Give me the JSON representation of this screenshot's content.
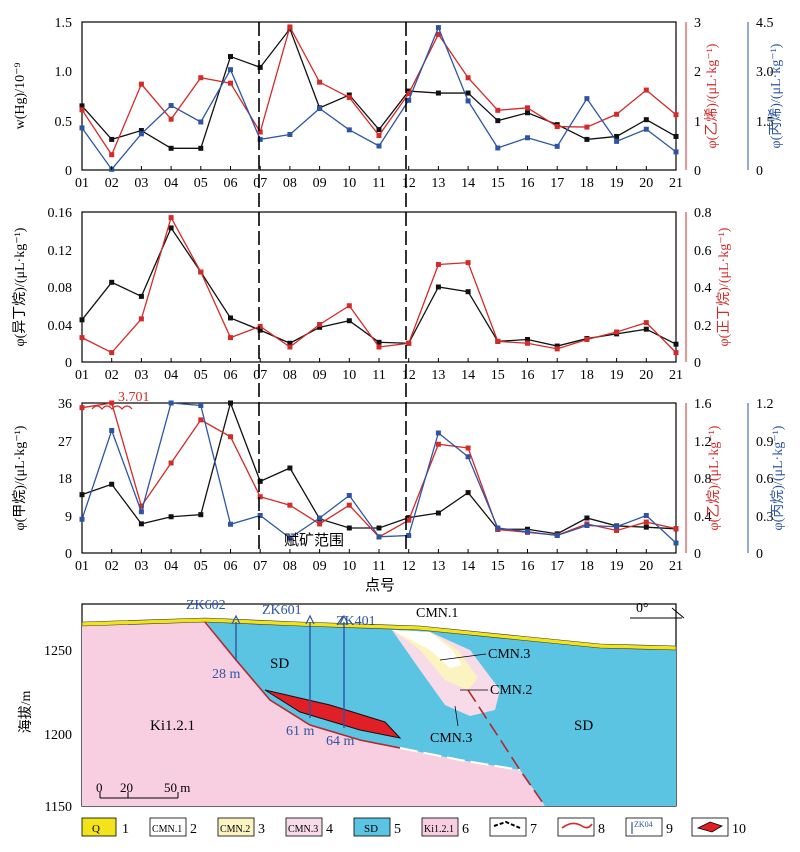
{
  "chart_data": [
    {
      "type": "line",
      "x_categories": [
        "01",
        "02",
        "03",
        "04",
        "05",
        "06",
        "07",
        "08",
        "09",
        "10",
        "11",
        "12",
        "13",
        "14",
        "15",
        "16",
        "17",
        "18",
        "19",
        "20",
        "21"
      ],
      "left_axis": {
        "label": "w(Hg)/10⁻⁹",
        "ylim": [
          0,
          1.5
        ],
        "ticks": [
          "0",
          "0.5",
          "1.0",
          "1.5"
        ]
      },
      "right_axis_1": {
        "label": "φ(乙烯)/(μL·kg⁻¹)",
        "ylim": [
          0,
          3
        ],
        "ticks": [
          "0",
          "1",
          "2",
          "3"
        ],
        "color": "#d42a2a"
      },
      "right_axis_2": {
        "label": "φ(丙烯)/(μL·kg⁻¹)",
        "ylim": [
          0,
          4.5
        ],
        "ticks": [
          "0",
          "1.5",
          "3.0",
          "4.5"
        ],
        "color": "#2e55a3"
      },
      "series": [
        {
          "axis": "left",
          "color": "#111111",
          "values": [
            0.65,
            0.31,
            0.4,
            0.22,
            0.22,
            1.15,
            1.04,
            1.43,
            0.63,
            0.76,
            0.41,
            0.8,
            0.78,
            0.78,
            0.5,
            0.58,
            0.46,
            0.31,
            0.34,
            0.51,
            0.34
          ]
        },
        {
          "axis": "right_1",
          "color": "#d42a2a",
          "values": [
            1.22,
            0.31,
            1.74,
            1.03,
            1.87,
            1.76,
            0.77,
            2.9,
            1.78,
            1.47,
            0.7,
            1.55,
            2.75,
            1.87,
            1.21,
            1.26,
            0.88,
            0.87,
            1.13,
            1.62,
            1.12
          ]
        },
        {
          "axis": "right_2",
          "color": "#2e55a3",
          "values": [
            1.28,
            0.02,
            1.1,
            1.96,
            1.46,
            3.05,
            0.93,
            1.08,
            1.87,
            1.22,
            0.73,
            2.12,
            4.33,
            2.1,
            0.67,
            0.98,
            0.72,
            2.17,
            0.87,
            1.24,
            0.55
          ]
        }
      ]
    },
    {
      "type": "line",
      "x_categories": [
        "01",
        "02",
        "03",
        "04",
        "05",
        "06",
        "07",
        "08",
        "09",
        "10",
        "11",
        "12",
        "13",
        "14",
        "15",
        "16",
        "17",
        "18",
        "19",
        "20",
        "21"
      ],
      "left_axis": {
        "label": "φ(异丁烷)/(μL·kg⁻¹)",
        "ylim": [
          0,
          0.16
        ],
        "ticks": [
          "0",
          "0.04",
          "0.08",
          "0.12",
          "0.16"
        ]
      },
      "right_axis_1": {
        "label": "φ(正丁烷)/(μL·kg⁻¹)",
        "ylim": [
          0,
          0.8
        ],
        "ticks": [
          "0",
          "0.2",
          "0.4",
          "0.6",
          "0.8"
        ],
        "color": "#d42a2a"
      },
      "series": [
        {
          "axis": "left",
          "color": "#111111",
          "values": [
            0.045,
            0.085,
            0.07,
            0.143,
            0.096,
            0.047,
            0.034,
            0.02,
            0.037,
            0.044,
            0.021,
            0.02,
            0.08,
            0.075,
            0.022,
            0.024,
            0.017,
            0.025,
            0.03,
            0.035,
            0.019
          ]
        },
        {
          "axis": "right_1",
          "color": "#d42a2a",
          "values": [
            0.13,
            0.05,
            0.23,
            0.77,
            0.48,
            0.13,
            0.19,
            0.08,
            0.2,
            0.3,
            0.08,
            0.1,
            0.52,
            0.53,
            0.11,
            0.1,
            0.07,
            0.12,
            0.16,
            0.21,
            0.05
          ]
        }
      ]
    },
    {
      "type": "line",
      "x_categories": [
        "01",
        "02",
        "03",
        "04",
        "05",
        "06",
        "07",
        "08",
        "09",
        "10",
        "11",
        "12",
        "13",
        "14",
        "15",
        "16",
        "17",
        "18",
        "19",
        "20",
        "21"
      ],
      "xlabel": "点号",
      "left_axis": {
        "label": "φ(甲烷)/(μL·kg⁻¹)",
        "ylim": [
          0,
          36
        ],
        "ticks": [
          "0",
          "9",
          "18",
          "27",
          "36"
        ]
      },
      "right_axis_1": {
        "label": "φ(乙烷)/(μL·kg⁻¹)",
        "ylim": [
          0,
          1.6
        ],
        "ticks": [
          "0",
          "0.4",
          "0.8",
          "1.2",
          "1.6"
        ],
        "color": "#d42a2a"
      },
      "right_axis_2": {
        "label": "φ(丙烷)/(μL·kg⁻¹)",
        "ylim": [
          0,
          1.2
        ],
        "ticks": [
          "0",
          "0.3",
          "0.6",
          "0.9",
          "1.2"
        ],
        "color": "#2e55a3"
      },
      "annotations": {
        "peak_value": "3.701",
        "zone_label": "赋矿范围"
      },
      "series": [
        {
          "axis": "left",
          "color": "#111111",
          "values": [
            14,
            16.5,
            7,
            8.7,
            9.2,
            37,
            17.2,
            20.4,
            8.2,
            6,
            6,
            8.5,
            9.6,
            14.5,
            5.7,
            5.7,
            4.6,
            8.4,
            6.5,
            6.2,
            5.8
          ]
        },
        {
          "axis": "right_1",
          "color": "#d42a2a",
          "values": [
            1.55,
            1.6,
            0.5,
            0.96,
            1.42,
            1.24,
            0.6,
            0.51,
            0.31,
            0.51,
            0.17,
            0.35,
            1.16,
            1.12,
            0.25,
            0.22,
            0.19,
            0.31,
            0.24,
            0.33,
            0.26
          ]
        },
        {
          "axis": "right_2",
          "color": "#2e55a3",
          "values": [
            0.27,
            0.98,
            0.33,
            1.2,
            1.18,
            0.23,
            0.3,
            0.12,
            0.28,
            0.46,
            0.13,
            0.14,
            0.96,
            0.77,
            0.2,
            0.17,
            0.14,
            0.22,
            0.21,
            0.3,
            0.08
          ]
        }
      ]
    }
  ],
  "section": {
    "ylabel": "海拔/m",
    "ticks": [
      "1250",
      "1200",
      "1150"
    ],
    "drillholes": [
      "ZK602",
      "ZK601",
      "ZK401"
    ],
    "depths": [
      "28 m",
      "61 m",
      "64 m"
    ],
    "units": [
      "SD",
      "Ki1.2.1",
      "CMN.1",
      "CMN.2",
      "CMN.3",
      "CMN.3",
      "SD"
    ],
    "dip": "0°",
    "scale": [
      "0",
      "20",
      "50 m"
    ]
  },
  "legend": {
    "items": [
      {
        "num": "1",
        "text": "Q",
        "fill": "#f2e31b"
      },
      {
        "num": "2",
        "text": "CMN.1",
        "fill": "#ffffff"
      },
      {
        "num": "3",
        "text": "CMN.2",
        "fill": "#fbf3c0"
      },
      {
        "num": "4",
        "text": "CMN.3",
        "fill": "#f7dbe8"
      },
      {
        "num": "5",
        "text": "SD",
        "fill": "#5bc4e3"
      },
      {
        "num": "6",
        "text": "Ki1.2.1",
        "fill": "#f8cfe0"
      },
      {
        "num": "7",
        "text": ""
      },
      {
        "num": "8",
        "text": ""
      },
      {
        "num": "9",
        "text": "ZK04"
      },
      {
        "num": "10",
        "text": ""
      }
    ]
  }
}
